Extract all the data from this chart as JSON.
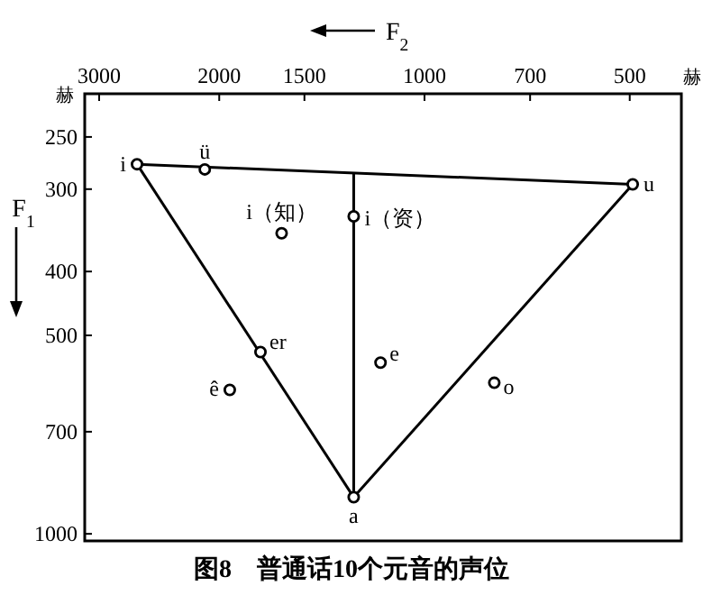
{
  "chart_data": {
    "type": "scatter",
    "title": "图8　普通话10个元音的声位",
    "xlabel": "F$_{2}$",
    "ylabel": "F$_{1}$",
    "log": "xy",
    "grid": false,
    "xlim": [
      3150,
      420
    ],
    "xticks": [
      3000,
      2000,
      1500,
      1000,
      700,
      500
    ],
    "ylim": [
      1025,
      215
    ],
    "yticks": [
      250,
      300,
      400,
      500,
      700,
      1000
    ],
    "series": [
      {
        "type": "line",
        "color": "#000000",
        "marker": "none",
        "x": [
          2640,
          495
        ],
        "values": [
          275,
          295
        ]
      },
      {
        "type": "line",
        "color": "#000000",
        "marker": "none",
        "x": [
          495,
          1270
        ],
        "values": [
          295,
          880
        ]
      },
      {
        "type": "line",
        "color": "#000000",
        "marker": "none",
        "x": [
          1270,
          2640
        ],
        "values": [
          880,
          275
        ]
      },
      {
        "type": "line",
        "color": "#000000",
        "marker": "none",
        "x": [
          1270,
          1270
        ],
        "values": [
          284,
          880
        ]
      },
      {
        "color": "#000000",
        "marker": "circle",
        "x": [
          2640,
          2100,
          495,
          1620,
          1270,
          1740,
          1930,
          1160,
          790,
          1270
        ],
        "values": [
          275,
          280,
          295,
          350,
          330,
          530,
          605,
          550,
          590,
          880
        ]
      }
    ],
    "annotations": [
      "赫",
      "赫",
      {
        "text": "i",
        "x": 2640,
        "y": 275
      },
      {
        "text": "ü",
        "x": 2100,
        "y": 280
      },
      {
        "text": "u",
        "x": 495,
        "y": 295
      },
      {
        "text": "i（知）",
        "x": 1620,
        "y": 350
      },
      {
        "text": "i（资）",
        "x": 1270,
        "y": 330
      },
      {
        "text": "er",
        "x": 1740,
        "y": 530
      },
      {
        "text": "ê",
        "x": 1930,
        "y": 605
      },
      {
        "text": "e",
        "x": 1160,
        "y": 550
      },
      {
        "text": "o",
        "x": 790,
        "y": 590
      },
      {
        "text": "a",
        "x": 1270,
        "y": 880
      }
    ]
  }
}
